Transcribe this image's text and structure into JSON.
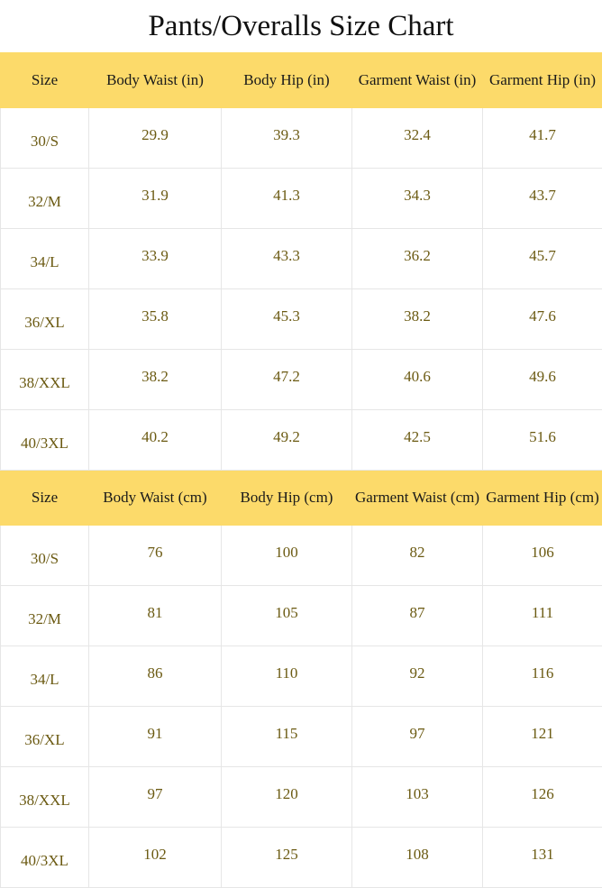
{
  "title": "Pants/Overalls Size Chart",
  "colors": {
    "header_bg": "#fcda6a",
    "value_text": "#6b5a12"
  },
  "tables": [
    {
      "headers": [
        "Size",
        "Body Waist (in)",
        "Body Hip (in)",
        "Garment Waist (in)",
        "Garment Hip (in)"
      ],
      "rows": [
        [
          "30/S",
          "29.9",
          "39.3",
          "32.4",
          "41.7"
        ],
        [
          "32/M",
          "31.9",
          "41.3",
          "34.3",
          "43.7"
        ],
        [
          "34/L",
          "33.9",
          "43.3",
          "36.2",
          "45.7"
        ],
        [
          "36/XL",
          "35.8",
          "45.3",
          "38.2",
          "47.6"
        ],
        [
          "38/XXL",
          "38.2",
          "47.2",
          "40.6",
          "49.6"
        ],
        [
          "40/3XL",
          "40.2",
          "49.2",
          "42.5",
          "51.6"
        ]
      ]
    },
    {
      "headers": [
        "Size",
        "Body Waist (cm)",
        "Body Hip (cm)",
        "Garment Waist (cm)",
        "Garment Hip (cm)"
      ],
      "rows": [
        [
          "30/S",
          "76",
          "100",
          "82",
          "106"
        ],
        [
          "32/M",
          "81",
          "105",
          "87",
          "111"
        ],
        [
          "34/L",
          "86",
          "110",
          "92",
          "116"
        ],
        [
          "36/XL",
          "91",
          "115",
          "97",
          "121"
        ],
        [
          "38/XXL",
          "97",
          "120",
          "103",
          "126"
        ],
        [
          "40/3XL",
          "102",
          "125",
          "108",
          "131"
        ]
      ]
    }
  ]
}
